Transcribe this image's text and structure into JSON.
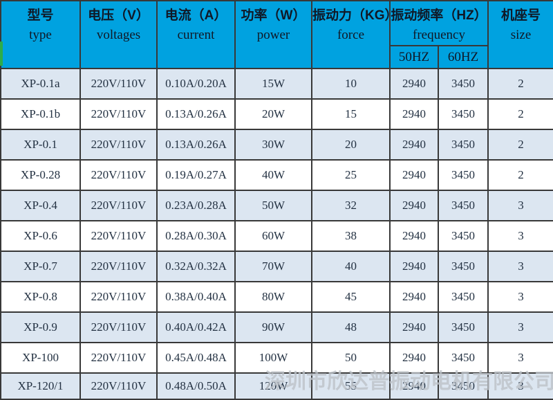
{
  "colors": {
    "header_bg": "#00A2E0",
    "row_alt_bg": "#DCE6F1",
    "row_bg": "#FFFFFF",
    "border": "#383838",
    "text": "#233142",
    "watermark": "#BDC2C8",
    "accent_green": "#2EAD4B"
  },
  "watermark_text": "深圳市欣达普振动电机有限公司",
  "table": {
    "headers": {
      "type": {
        "zh": "型号",
        "en": "type"
      },
      "voltage": {
        "zh": "电压（V）",
        "en": "voltages"
      },
      "current": {
        "zh": "电流（A）",
        "en": "current"
      },
      "power": {
        "zh": "功率（W）",
        "en": "power"
      },
      "force": {
        "zh": "振动力（KG）",
        "en": "force"
      },
      "frequency": {
        "zh": "振动频率（HZ）",
        "en": "frequency",
        "sub": [
          "50HZ",
          "60HZ"
        ]
      },
      "size": {
        "zh": "机座号",
        "en": "size"
      }
    },
    "rows": [
      [
        "XP-0.1a",
        "220V/110V",
        "0.10A/0.20A",
        "15W",
        "10",
        "2940",
        "3450",
        "2"
      ],
      [
        "XP-0.1b",
        "220V/110V",
        "0.13A/0.26A",
        "20W",
        "15",
        "2940",
        "3450",
        "2"
      ],
      [
        "XP-0.1",
        "220V/110V",
        "0.13A/0.26A",
        "30W",
        "20",
        "2940",
        "3450",
        "2"
      ],
      [
        "XP-0.28",
        "220V/110V",
        "0.19A/0.27A",
        "40W",
        "25",
        "2940",
        "3450",
        "2"
      ],
      [
        "XP-0.4",
        "220V/110V",
        "0.23A/0.28A",
        "50W",
        "32",
        "2940",
        "3450",
        "3"
      ],
      [
        "XP-0.6",
        "220V/110V",
        "0.28A/0.30A",
        "60W",
        "38",
        "2940",
        "3450",
        "3"
      ],
      [
        "XP-0.7",
        "220V/110V",
        "0.32A/0.32A",
        "70W",
        "40",
        "2940",
        "3450",
        "3"
      ],
      [
        "XP-0.8",
        "220V/110V",
        "0.38A/0.40A",
        "80W",
        "45",
        "2940",
        "3450",
        "3"
      ],
      [
        "XP-0.9",
        "220V/110V",
        "0.40A/0.42A",
        "90W",
        "48",
        "2940",
        "3450",
        "3"
      ],
      [
        "XP-100",
        "220V/110V",
        "0.45A/0.48A",
        "100W",
        "50",
        "2940",
        "3450",
        "3"
      ],
      [
        "XP-120/1",
        "220V/110V",
        "0.48A/0.50A",
        "120W",
        "55",
        "2940",
        "3450",
        "3"
      ]
    ]
  }
}
